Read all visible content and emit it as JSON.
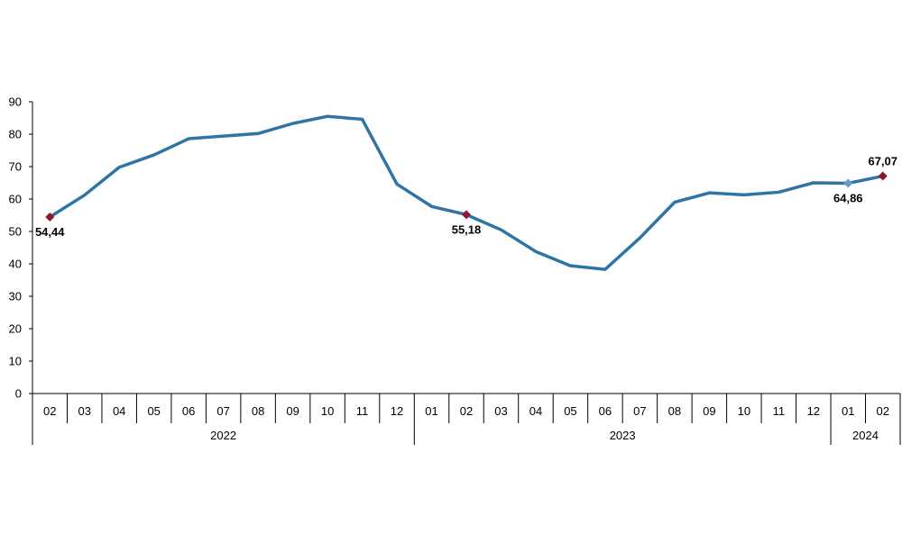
{
  "chart_data": {
    "type": "line",
    "title": "",
    "xlabel": "",
    "ylabel": "",
    "ylim": [
      0,
      90
    ],
    "yticks": [
      "0",
      "10",
      "20",
      "30",
      "40",
      "50",
      "60",
      "70",
      "80",
      "90"
    ],
    "grid": false,
    "legend": "none",
    "categories": [
      "02",
      "03",
      "04",
      "05",
      "06",
      "07",
      "08",
      "09",
      "10",
      "11",
      "12",
      "01",
      "02",
      "03",
      "04",
      "05",
      "06",
      "07",
      "08",
      "09",
      "10",
      "11",
      "12",
      "01",
      "02"
    ],
    "year_groups": [
      {
        "label": "2022",
        "count": 11
      },
      {
        "label": "2023",
        "count": 12
      },
      {
        "label": "2024",
        "count": 2
      }
    ],
    "series": [
      {
        "color": "#2E75A6",
        "values": [
          54.44,
          61.2,
          69.8,
          73.6,
          78.6,
          79.4,
          80.2,
          83.3,
          85.5,
          84.6,
          64.6,
          57.7,
          55.18,
          50.5,
          43.8,
          39.4,
          38.3,
          48.0,
          59.0,
          61.9,
          61.3,
          62.1,
          65.0,
          64.86,
          67.07
        ]
      }
    ],
    "labeled_points": [
      {
        "index": 0,
        "text": "54,44",
        "marker_color": "#8B1A2B",
        "position": "below"
      },
      {
        "index": 12,
        "text": "55,18",
        "marker_color": "#8B1A2B",
        "position": "below"
      },
      {
        "index": 23,
        "text": "64,86",
        "marker_color": "#6A9AC8",
        "position": "below"
      },
      {
        "index": 24,
        "text": "67,07",
        "marker_color": "#8B1A2B",
        "position": "above"
      }
    ]
  }
}
